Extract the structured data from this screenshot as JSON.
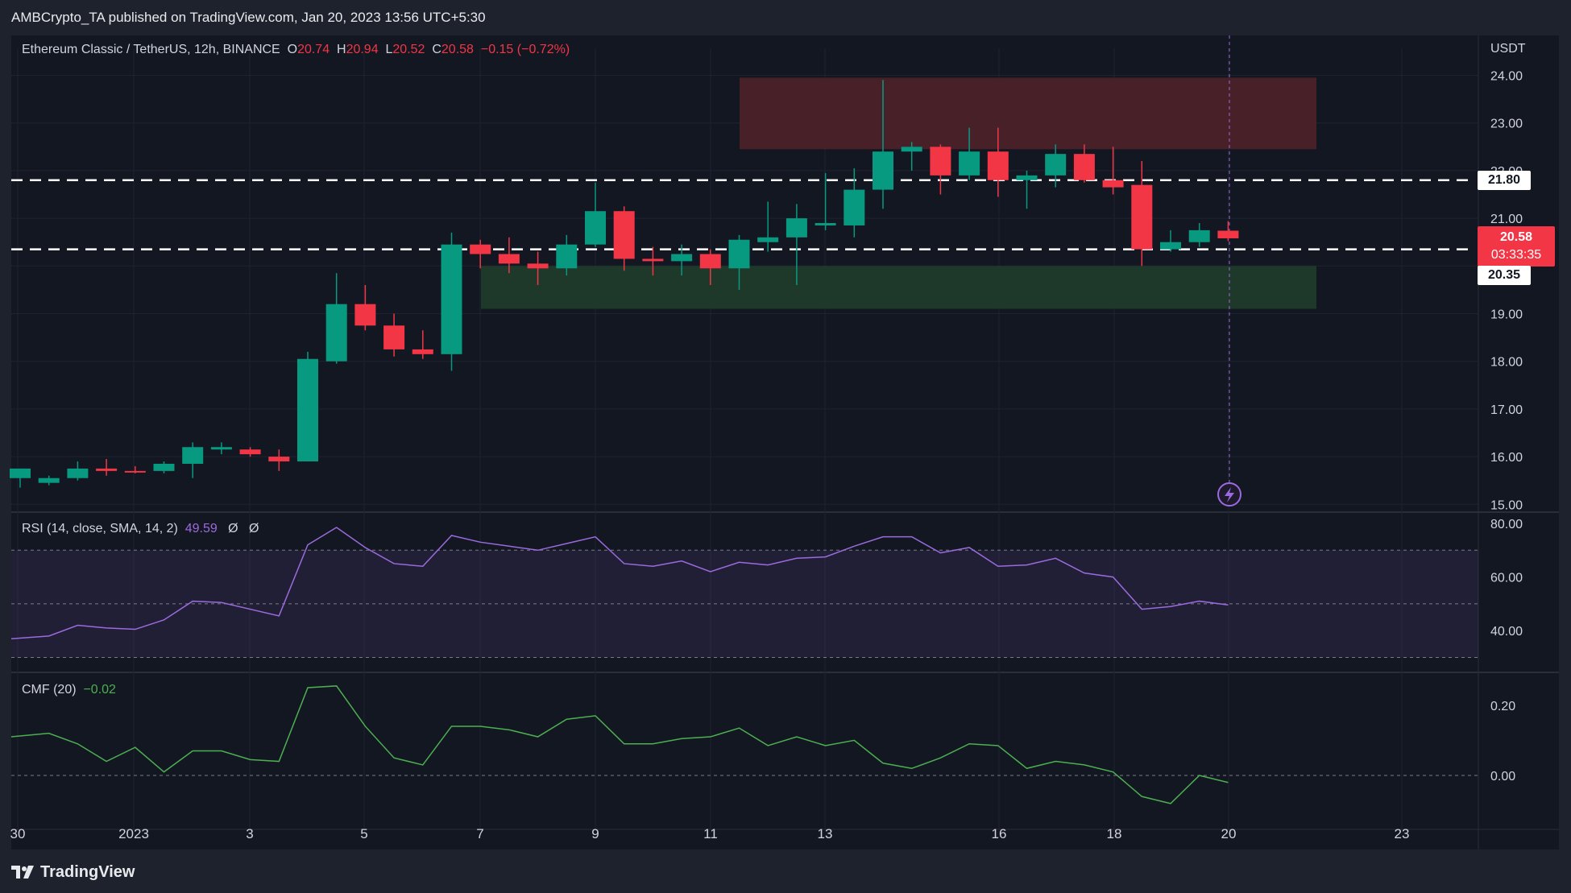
{
  "header": {
    "published": "AMBCrypto_TA published on TradingView.com, Jan 20, 2023 13:56 UTC+5:30"
  },
  "legend": {
    "symbol": "Ethereum Classic / TetherUS, 12h, BINANCE",
    "o_label": "O",
    "o_value": "20.74",
    "h_label": "H",
    "h_value": "20.94",
    "l_label": "L",
    "l_value": "20.52",
    "c_label": "C",
    "c_value": "20.58",
    "change": "−0.15 (−0.72%)"
  },
  "price_axis": {
    "currency": "USDT",
    "ticks": [
      "24.00",
      "23.00",
      "22.00",
      "21.00",
      "19.00",
      "18.00",
      "17.00",
      "16.00",
      "15.00"
    ],
    "level_high": "21.80",
    "last_price": "20.58",
    "countdown": "03:33:35",
    "level_low": "20.35"
  },
  "rsi": {
    "label": "RSI (14, close, SMA, 14, 2)",
    "value": "49.59",
    "extra1": "Ø",
    "extra2": "Ø",
    "ticks": [
      "80.00",
      "60.00",
      "40.00"
    ]
  },
  "cmf": {
    "label": "CMF (20)",
    "value": "−0.02",
    "ticks": [
      "0.20",
      "0.00"
    ]
  },
  "time_axis": {
    "labels": [
      "30",
      "2023",
      "3",
      "5",
      "7",
      "9",
      "11",
      "13",
      "16",
      "18",
      "20",
      "23"
    ]
  },
  "footer": {
    "brand": "TradingView"
  },
  "colors": {
    "up": "#089981",
    "down": "#f23645",
    "rsi": "#9c6ade",
    "cmf": "#4caf50",
    "supply_zone": "#4a2129",
    "demand_zone": "#1f3a2b"
  },
  "chart_data": {
    "type": "candlestick",
    "title": "Ethereum Classic / TetherUS, 12h, BINANCE",
    "ylabel": "USDT",
    "ylim": [
      15.0,
      24.3
    ],
    "horizontal_levels": [
      21.8,
      20.35
    ],
    "zones": [
      {
        "name": "supply",
        "from": 22.45,
        "to": 23.95
      },
      {
        "name": "demand",
        "from": 19.1,
        "to": 20.0
      }
    ],
    "candles": [
      {
        "o": 15.55,
        "h": 15.75,
        "l": 15.35,
        "c": 15.75
      },
      {
        "o": 15.45,
        "h": 15.6,
        "l": 15.4,
        "c": 15.55
      },
      {
        "o": 15.55,
        "h": 15.9,
        "l": 15.5,
        "c": 15.75
      },
      {
        "o": 15.75,
        "h": 15.95,
        "l": 15.6,
        "c": 15.7
      },
      {
        "o": 15.7,
        "h": 15.8,
        "l": 15.65,
        "c": 15.68
      },
      {
        "o": 15.7,
        "h": 15.9,
        "l": 15.65,
        "c": 15.85
      },
      {
        "o": 15.85,
        "h": 16.3,
        "l": 15.55,
        "c": 16.2
      },
      {
        "o": 16.15,
        "h": 16.3,
        "l": 16.05,
        "c": 16.2
      },
      {
        "o": 16.15,
        "h": 16.2,
        "l": 16.0,
        "c": 16.05
      },
      {
        "o": 16.0,
        "h": 16.15,
        "l": 15.7,
        "c": 15.9
      },
      {
        "o": 15.9,
        "h": 18.2,
        "l": 15.9,
        "c": 18.05
      },
      {
        "o": 18.0,
        "h": 19.85,
        "l": 17.95,
        "c": 19.2
      },
      {
        "o": 19.2,
        "h": 19.6,
        "l": 18.65,
        "c": 18.75
      },
      {
        "o": 18.75,
        "h": 19.0,
        "l": 18.1,
        "c": 18.25
      },
      {
        "o": 18.25,
        "h": 18.65,
        "l": 18.05,
        "c": 18.15
      },
      {
        "o": 18.15,
        "h": 20.7,
        "l": 17.8,
        "c": 20.45
      },
      {
        "o": 20.45,
        "h": 20.55,
        "l": 19.95,
        "c": 20.25
      },
      {
        "o": 20.25,
        "h": 20.6,
        "l": 19.85,
        "c": 20.05
      },
      {
        "o": 20.05,
        "h": 20.3,
        "l": 19.6,
        "c": 19.95
      },
      {
        "o": 19.95,
        "h": 20.65,
        "l": 19.8,
        "c": 20.45
      },
      {
        "o": 20.45,
        "h": 21.75,
        "l": 20.4,
        "c": 21.15
      },
      {
        "o": 21.15,
        "h": 21.25,
        "l": 19.9,
        "c": 20.15
      },
      {
        "o": 20.15,
        "h": 20.4,
        "l": 19.8,
        "c": 20.1
      },
      {
        "o": 20.1,
        "h": 20.45,
        "l": 19.8,
        "c": 20.25
      },
      {
        "o": 20.25,
        "h": 20.35,
        "l": 19.6,
        "c": 19.95
      },
      {
        "o": 19.95,
        "h": 20.65,
        "l": 19.5,
        "c": 20.55
      },
      {
        "o": 20.5,
        "h": 21.35,
        "l": 20.3,
        "c": 20.6
      },
      {
        "o": 20.6,
        "h": 21.3,
        "l": 19.6,
        "c": 21.0
      },
      {
        "o": 20.85,
        "h": 21.95,
        "l": 20.75,
        "c": 20.9
      },
      {
        "o": 20.85,
        "h": 22.05,
        "l": 20.6,
        "c": 21.6
      },
      {
        "o": 21.6,
        "h": 23.9,
        "l": 21.2,
        "c": 22.4
      },
      {
        "o": 22.4,
        "h": 22.6,
        "l": 22.0,
        "c": 22.5
      },
      {
        "o": 22.5,
        "h": 22.55,
        "l": 21.5,
        "c": 21.9
      },
      {
        "o": 21.9,
        "h": 22.9,
        "l": 21.8,
        "c": 22.4
      },
      {
        "o": 22.4,
        "h": 22.9,
        "l": 21.45,
        "c": 21.8
      },
      {
        "o": 21.8,
        "h": 22.0,
        "l": 21.2,
        "c": 21.9
      },
      {
        "o": 21.9,
        "h": 22.55,
        "l": 21.65,
        "c": 22.35
      },
      {
        "o": 22.35,
        "h": 22.55,
        "l": 21.75,
        "c": 21.8
      },
      {
        "o": 21.8,
        "h": 22.5,
        "l": 21.5,
        "c": 21.65
      },
      {
        "o": 21.7,
        "h": 22.2,
        "l": 20.0,
        "c": 20.35
      },
      {
        "o": 20.35,
        "h": 20.75,
        "l": 20.3,
        "c": 20.5
      },
      {
        "o": 20.5,
        "h": 20.9,
        "l": 20.4,
        "c": 20.75
      },
      {
        "o": 20.74,
        "h": 20.94,
        "l": 20.52,
        "c": 20.58
      }
    ],
    "rsi": {
      "ylim": [
        25,
        82
      ],
      "bands": [
        30,
        50,
        70
      ],
      "values": [
        37,
        38,
        42,
        41,
        40.5,
        44,
        51,
        50.5,
        48,
        45.5,
        72,
        78.5,
        71,
        65,
        64,
        75.5,
        73,
        71.5,
        70,
        72.5,
        75,
        65,
        64,
        66,
        62,
        65.5,
        64.5,
        67,
        67.5,
        71.5,
        75,
        75,
        69,
        71,
        64,
        64.5,
        67,
        61.5,
        60,
        48,
        49,
        51,
        49.59
      ]
    },
    "cmf": {
      "ylim": [
        -0.12,
        0.28
      ],
      "zero_line": 0,
      "values": [
        0.11,
        0.12,
        0.09,
        0.04,
        0.08,
        0.01,
        0.07,
        0.07,
        0.045,
        0.04,
        0.25,
        0.255,
        0.14,
        0.05,
        0.03,
        0.14,
        0.14,
        0.13,
        0.11,
        0.16,
        0.17,
        0.09,
        0.09,
        0.105,
        0.11,
        0.135,
        0.085,
        0.11,
        0.085,
        0.1,
        0.035,
        0.02,
        0.05,
        0.09,
        0.085,
        0.02,
        0.04,
        0.03,
        0.01,
        -0.06,
        -0.08,
        0.0,
        -0.02
      ]
    }
  }
}
